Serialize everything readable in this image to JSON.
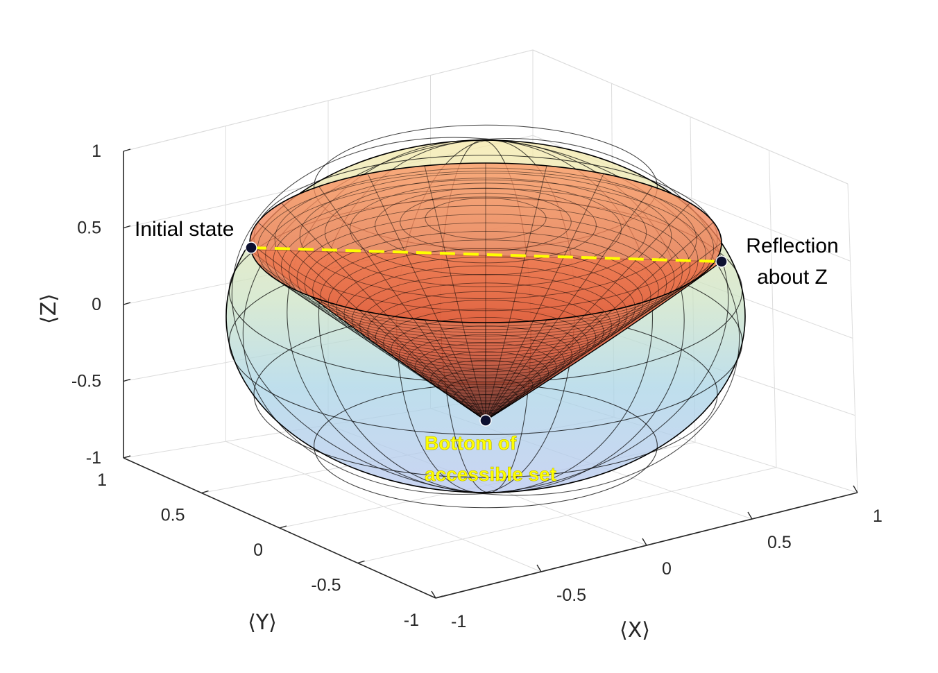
{
  "chart_data": {
    "type": "surface3d",
    "xlabel": "⟨X⟩",
    "ylabel": "⟨Y⟩",
    "zlabel": "⟨Z⟩",
    "xlim": [
      -1,
      1
    ],
    "ylim": [
      -1,
      1
    ],
    "zlim": [
      -1,
      1
    ],
    "xticks": [
      "-1",
      "-0.5",
      "0",
      "0.5",
      "1"
    ],
    "yticks": [
      "-1",
      "-0.5",
      "0",
      "0.5",
      "1"
    ],
    "zticks": [
      "-1",
      "-0.5",
      "0",
      "0.5",
      "1"
    ],
    "grid": true,
    "surfaces": [
      {
        "kind": "bloch-sphere",
        "radius": 1,
        "colors": [
          "#f6e9a8",
          "#a9d4e6",
          "#b7c6ee"
        ]
      },
      {
        "kind": "accessible-set-cone",
        "rim_z": 0.3,
        "apex": [
          0,
          0,
          -0.75
        ],
        "colors": [
          "#ff8a5a",
          "#cc3a24"
        ]
      }
    ],
    "path": {
      "from": "initial",
      "to": "reflection",
      "style": "dashed",
      "color": "#ffff00"
    },
    "points": [
      {
        "id": "initial",
        "x": -0.95,
        "y": 0,
        "z": 0.3
      },
      {
        "id": "reflection",
        "x": 0.95,
        "y": 0,
        "z": 0.3
      },
      {
        "id": "bottom",
        "x": 0,
        "y": 0,
        "z": -0.75
      }
    ],
    "annotations": [
      {
        "id": "initial",
        "lines": [
          "Initial state"
        ]
      },
      {
        "id": "reflection",
        "lines": [
          "Reflection",
          "about Z"
        ]
      },
      {
        "id": "bottom",
        "lines": [
          "Bottom of",
          "accessible set"
        ]
      }
    ]
  }
}
